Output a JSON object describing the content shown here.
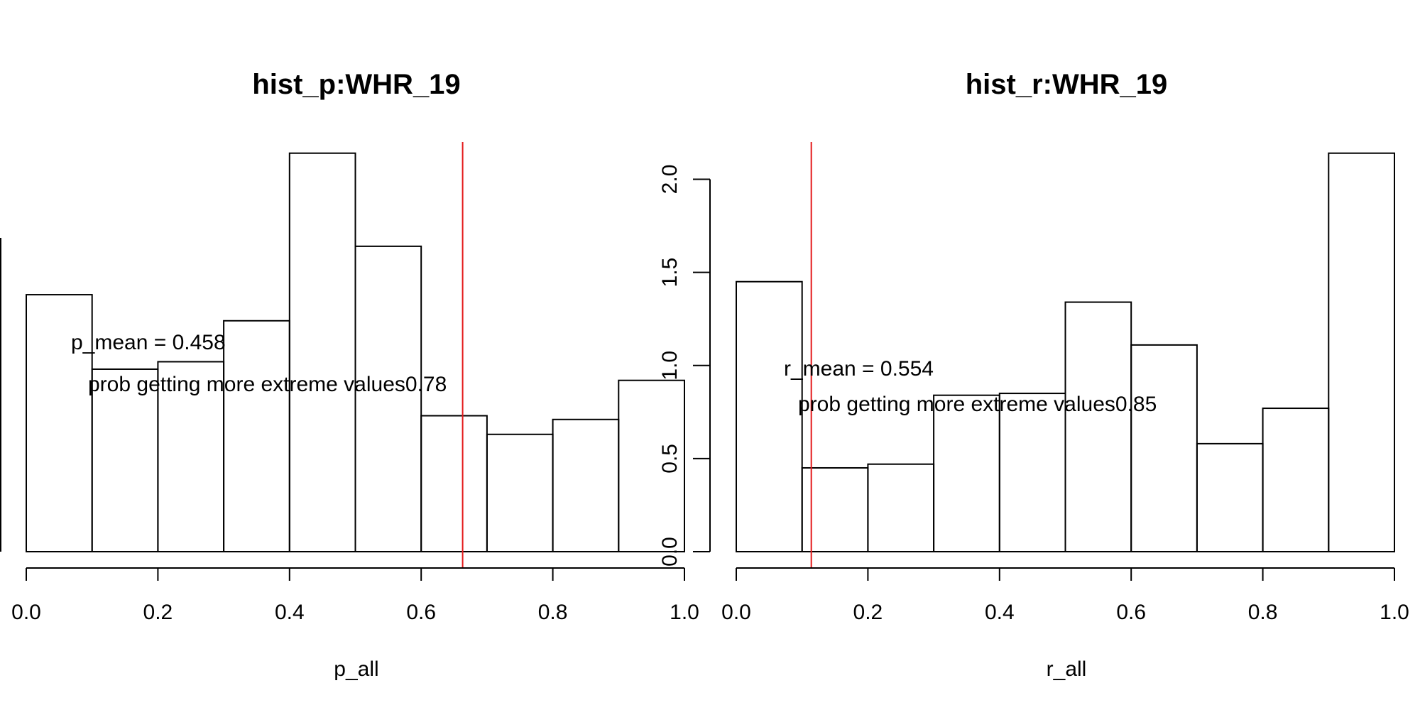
{
  "chart_data": [
    {
      "type": "bar",
      "title": "hist_p:WHR_19",
      "xlabel": "p_all",
      "ylabel": "",
      "xlim": [
        0,
        1
      ],
      "ylim": [
        0,
        2.2
      ],
      "bin_edges": [
        0,
        0.1,
        0.2,
        0.3,
        0.4,
        0.5,
        0.6,
        0.7,
        0.8,
        0.9,
        1.0
      ],
      "values": [
        1.38,
        0.98,
        1.02,
        1.24,
        2.14,
        1.64,
        0.73,
        0.63,
        0.71,
        0.92
      ],
      "x_ticks": [
        "0.0",
        "0.2",
        "0.4",
        "0.6",
        "0.8",
        "1.0"
      ],
      "y_ticks": [],
      "ref_line": {
        "x": 0.663,
        "color": "#e41a1c"
      },
      "annotations": [
        "p_mean = 0.458",
        "prob getting more extreme values0.78"
      ]
    },
    {
      "type": "bar",
      "title": "hist_r:WHR_19",
      "xlabel": "r_all",
      "ylabel": "",
      "xlim": [
        0,
        1
      ],
      "ylim": [
        0,
        2.2
      ],
      "bin_edges": [
        0,
        0.1,
        0.2,
        0.3,
        0.4,
        0.5,
        0.6,
        0.7,
        0.8,
        0.9,
        1.0
      ],
      "values": [
        1.45,
        0.45,
        0.47,
        0.84,
        0.85,
        1.34,
        1.11,
        0.58,
        0.77,
        2.14
      ],
      "x_ticks": [
        "0.0",
        "0.2",
        "0.4",
        "0.6",
        "0.8",
        "1.0"
      ],
      "y_ticks": [
        "0.0",
        "0.5",
        "1.0",
        "1.5",
        "2.0"
      ],
      "ref_line": {
        "x": 0.114,
        "color": "#e41a1c"
      },
      "annotations": [
        "r_mean = 0.554",
        "prob getting more extreme values0.85"
      ]
    }
  ]
}
